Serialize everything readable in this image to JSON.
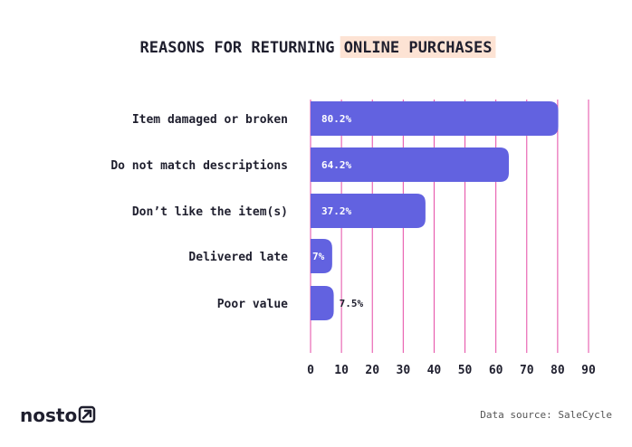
{
  "colors": {
    "bar": "#6262e0",
    "grid": "#e54aa5",
    "highlight": "#fde3d4",
    "text": "#1f1f2e"
  },
  "footer": {
    "logo": "nosto",
    "logo_icon": "nosto-arrow-icon",
    "source": "Data source: SaleCycle"
  },
  "chart_data": {
    "type": "bar",
    "orientation": "horizontal",
    "title": "REASONS FOR RETURNING ONLINE PURCHASES",
    "title_plain": "REASONS FOR RETURNING ",
    "title_highlight": "ONLINE PURCHASES",
    "categories": [
      "Item damaged or broken",
      "Do not match descriptions",
      "Don’t like the item(s)",
      "Delivered late",
      "Poor value"
    ],
    "values": [
      80.2,
      64.2,
      37.2,
      7,
      7.5
    ],
    "value_labels": [
      "80.2%",
      "64.2%",
      "37.2%",
      "7%",
      "7.5%"
    ],
    "xlim": [
      0,
      90
    ],
    "xticks": [
      0,
      10,
      20,
      30,
      40,
      50,
      60,
      70,
      80,
      90
    ],
    "grid": true,
    "legend": "none"
  }
}
